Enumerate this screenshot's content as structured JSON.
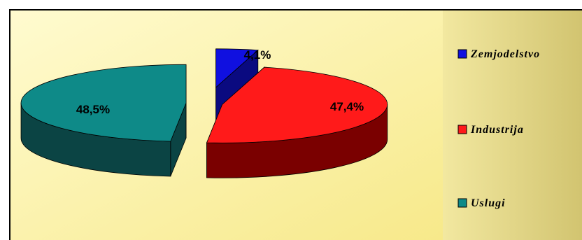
{
  "chart_data": {
    "type": "pie",
    "style": "3d-exploded",
    "legend": "right",
    "series": [
      {
        "name": "Zemjodelstvo",
        "value": 4.1,
        "label": "4,1%",
        "color": "#1010e0",
        "side_color": "#0a0a80"
      },
      {
        "name": "Industrija",
        "value": 47.4,
        "label": "47,4%",
        "color": "#ff1a1a",
        "side_color": "#7a0000"
      },
      {
        "name": "Uslugi",
        "value": 48.5,
        "label": "48,5%",
        "color": "#0e8a88",
        "side_color": "#0b4444"
      }
    ]
  },
  "colors": {
    "plot_background_start": "#fffbd0",
    "plot_background_end": "#f7e98a",
    "legend_background_start": "#f2e8a0",
    "legend_background_end": "#d2c470",
    "border": "#000000"
  }
}
